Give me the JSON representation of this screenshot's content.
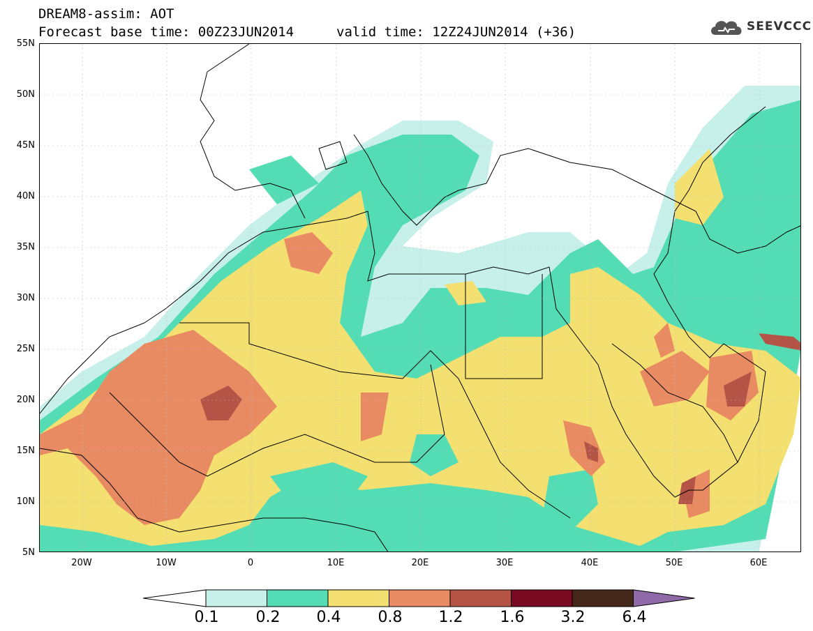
{
  "header": {
    "title": "DREAM8-assim: AOT",
    "base_time": "Forecast base time: 00Z23JUN2014",
    "valid_time": "valid time: 12Z24JUN2014 (+36)"
  },
  "logo": {
    "text": "SEEVCCC",
    "icon": "cloud-icon"
  },
  "map": {
    "variable": "AOT",
    "lat_ticks": [
      "55N",
      "50N",
      "45N",
      "40N",
      "35N",
      "30N",
      "25N",
      "20N",
      "15N",
      "10N",
      "5N"
    ],
    "lon_ticks": [
      "20W",
      "10W",
      "0",
      "10E",
      "20E",
      "30E",
      "40E",
      "50E",
      "60E"
    ],
    "lat_range": [
      5,
      55
    ],
    "lon_range": [
      -25,
      65
    ]
  },
  "legend": {
    "labels": [
      "0.1",
      "0.2",
      "0.4",
      "0.8",
      "1.2",
      "1.6",
      "3.2",
      "6.4"
    ],
    "colors": [
      "#c8f0ea",
      "#54dcb4",
      "#f4e070",
      "#e88a62",
      "#b45446",
      "#7a0a22",
      "#45281a",
      "#8e6aa8"
    ]
  }
}
